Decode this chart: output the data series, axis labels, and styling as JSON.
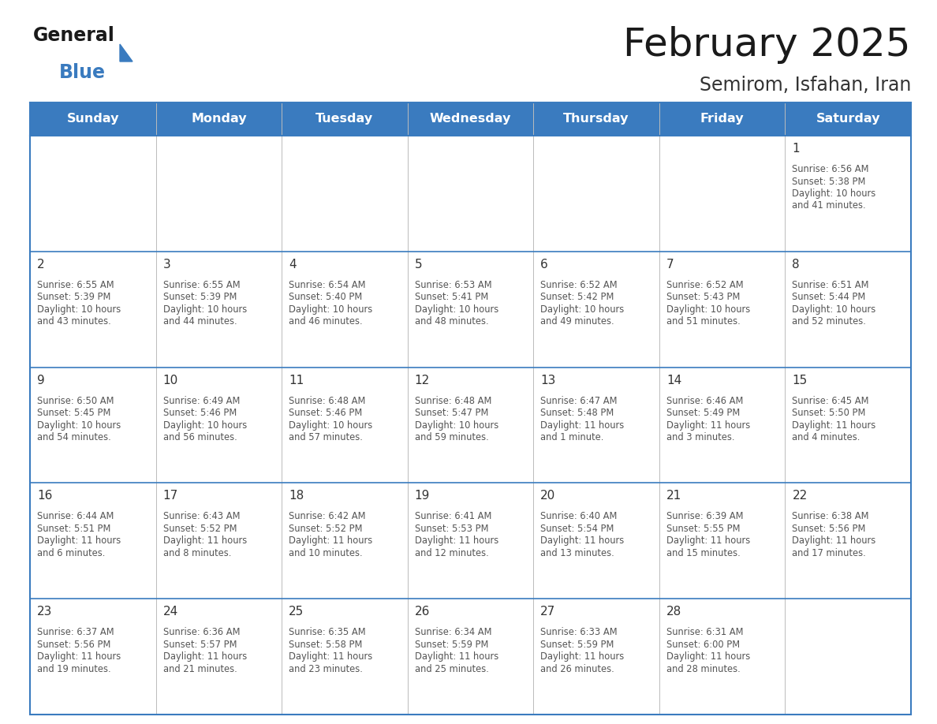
{
  "title": "February 2025",
  "subtitle": "Semirom, Isfahan, Iran",
  "header_color": "#3a7bbf",
  "header_text_color": "#ffffff",
  "border_color": "#3a7bbf",
  "cell_line_color": "#aaaaaa",
  "day_names": [
    "Sunday",
    "Monday",
    "Tuesday",
    "Wednesday",
    "Thursday",
    "Friday",
    "Saturday"
  ],
  "title_color": "#1a1a1a",
  "subtitle_color": "#333333",
  "day_number_color": "#333333",
  "info_color": "#555555",
  "logo_general_color": "#1a1a1a",
  "logo_blue_color": "#3a7bbf",
  "logo_triangle_color": "#3a7bbf",
  "calendar": [
    [
      {
        "day": 0,
        "sunrise": "",
        "sunset": "",
        "daylight_line1": "",
        "daylight_line2": ""
      },
      {
        "day": 0,
        "sunrise": "",
        "sunset": "",
        "daylight_line1": "",
        "daylight_line2": ""
      },
      {
        "day": 0,
        "sunrise": "",
        "sunset": "",
        "daylight_line1": "",
        "daylight_line2": ""
      },
      {
        "day": 0,
        "sunrise": "",
        "sunset": "",
        "daylight_line1": "",
        "daylight_line2": ""
      },
      {
        "day": 0,
        "sunrise": "",
        "sunset": "",
        "daylight_line1": "",
        "daylight_line2": ""
      },
      {
        "day": 0,
        "sunrise": "",
        "sunset": "",
        "daylight_line1": "",
        "daylight_line2": ""
      },
      {
        "day": 1,
        "sunrise": "6:56 AM",
        "sunset": "5:38 PM",
        "daylight_line1": "Daylight: 10 hours",
        "daylight_line2": "and 41 minutes."
      }
    ],
    [
      {
        "day": 2,
        "sunrise": "6:55 AM",
        "sunset": "5:39 PM",
        "daylight_line1": "Daylight: 10 hours",
        "daylight_line2": "and 43 minutes."
      },
      {
        "day": 3,
        "sunrise": "6:55 AM",
        "sunset": "5:39 PM",
        "daylight_line1": "Daylight: 10 hours",
        "daylight_line2": "and 44 minutes."
      },
      {
        "day": 4,
        "sunrise": "6:54 AM",
        "sunset": "5:40 PM",
        "daylight_line1": "Daylight: 10 hours",
        "daylight_line2": "and 46 minutes."
      },
      {
        "day": 5,
        "sunrise": "6:53 AM",
        "sunset": "5:41 PM",
        "daylight_line1": "Daylight: 10 hours",
        "daylight_line2": "and 48 minutes."
      },
      {
        "day": 6,
        "sunrise": "6:52 AM",
        "sunset": "5:42 PM",
        "daylight_line1": "Daylight: 10 hours",
        "daylight_line2": "and 49 minutes."
      },
      {
        "day": 7,
        "sunrise": "6:52 AM",
        "sunset": "5:43 PM",
        "daylight_line1": "Daylight: 10 hours",
        "daylight_line2": "and 51 minutes."
      },
      {
        "day": 8,
        "sunrise": "6:51 AM",
        "sunset": "5:44 PM",
        "daylight_line1": "Daylight: 10 hours",
        "daylight_line2": "and 52 minutes."
      }
    ],
    [
      {
        "day": 9,
        "sunrise": "6:50 AM",
        "sunset": "5:45 PM",
        "daylight_line1": "Daylight: 10 hours",
        "daylight_line2": "and 54 minutes."
      },
      {
        "day": 10,
        "sunrise": "6:49 AM",
        "sunset": "5:46 PM",
        "daylight_line1": "Daylight: 10 hours",
        "daylight_line2": "and 56 minutes."
      },
      {
        "day": 11,
        "sunrise": "6:48 AM",
        "sunset": "5:46 PM",
        "daylight_line1": "Daylight: 10 hours",
        "daylight_line2": "and 57 minutes."
      },
      {
        "day": 12,
        "sunrise": "6:48 AM",
        "sunset": "5:47 PM",
        "daylight_line1": "Daylight: 10 hours",
        "daylight_line2": "and 59 minutes."
      },
      {
        "day": 13,
        "sunrise": "6:47 AM",
        "sunset": "5:48 PM",
        "daylight_line1": "Daylight: 11 hours",
        "daylight_line2": "and 1 minute."
      },
      {
        "day": 14,
        "sunrise": "6:46 AM",
        "sunset": "5:49 PM",
        "daylight_line1": "Daylight: 11 hours",
        "daylight_line2": "and 3 minutes."
      },
      {
        "day": 15,
        "sunrise": "6:45 AM",
        "sunset": "5:50 PM",
        "daylight_line1": "Daylight: 11 hours",
        "daylight_line2": "and 4 minutes."
      }
    ],
    [
      {
        "day": 16,
        "sunrise": "6:44 AM",
        "sunset": "5:51 PM",
        "daylight_line1": "Daylight: 11 hours",
        "daylight_line2": "and 6 minutes."
      },
      {
        "day": 17,
        "sunrise": "6:43 AM",
        "sunset": "5:52 PM",
        "daylight_line1": "Daylight: 11 hours",
        "daylight_line2": "and 8 minutes."
      },
      {
        "day": 18,
        "sunrise": "6:42 AM",
        "sunset": "5:52 PM",
        "daylight_line1": "Daylight: 11 hours",
        "daylight_line2": "and 10 minutes."
      },
      {
        "day": 19,
        "sunrise": "6:41 AM",
        "sunset": "5:53 PM",
        "daylight_line1": "Daylight: 11 hours",
        "daylight_line2": "and 12 minutes."
      },
      {
        "day": 20,
        "sunrise": "6:40 AM",
        "sunset": "5:54 PM",
        "daylight_line1": "Daylight: 11 hours",
        "daylight_line2": "and 13 minutes."
      },
      {
        "day": 21,
        "sunrise": "6:39 AM",
        "sunset": "5:55 PM",
        "daylight_line1": "Daylight: 11 hours",
        "daylight_line2": "and 15 minutes."
      },
      {
        "day": 22,
        "sunrise": "6:38 AM",
        "sunset": "5:56 PM",
        "daylight_line1": "Daylight: 11 hours",
        "daylight_line2": "and 17 minutes."
      }
    ],
    [
      {
        "day": 23,
        "sunrise": "6:37 AM",
        "sunset": "5:56 PM",
        "daylight_line1": "Daylight: 11 hours",
        "daylight_line2": "and 19 minutes."
      },
      {
        "day": 24,
        "sunrise": "6:36 AM",
        "sunset": "5:57 PM",
        "daylight_line1": "Daylight: 11 hours",
        "daylight_line2": "and 21 minutes."
      },
      {
        "day": 25,
        "sunrise": "6:35 AM",
        "sunset": "5:58 PM",
        "daylight_line1": "Daylight: 11 hours",
        "daylight_line2": "and 23 minutes."
      },
      {
        "day": 26,
        "sunrise": "6:34 AM",
        "sunset": "5:59 PM",
        "daylight_line1": "Daylight: 11 hours",
        "daylight_line2": "and 25 minutes."
      },
      {
        "day": 27,
        "sunrise": "6:33 AM",
        "sunset": "5:59 PM",
        "daylight_line1": "Daylight: 11 hours",
        "daylight_line2": "and 26 minutes."
      },
      {
        "day": 28,
        "sunrise": "6:31 AM",
        "sunset": "6:00 PM",
        "daylight_line1": "Daylight: 11 hours",
        "daylight_line2": "and 28 minutes."
      },
      {
        "day": 0,
        "sunrise": "",
        "sunset": "",
        "daylight_line1": "",
        "daylight_line2": ""
      }
    ]
  ]
}
